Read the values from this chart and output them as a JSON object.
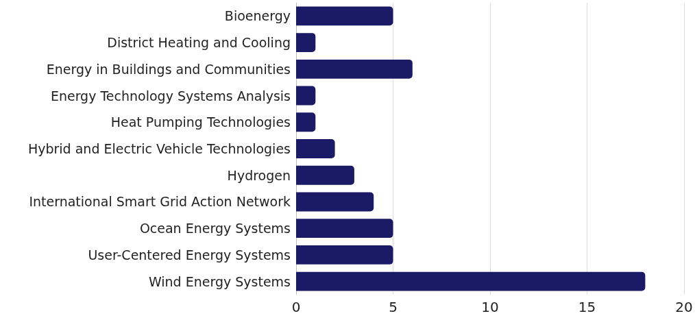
{
  "chart_data": {
    "type": "bar",
    "orientation": "horizontal",
    "categories": [
      "Bioenergy",
      "District Heating and Cooling",
      "Energy in Buildings and Communities",
      "Energy Technology Systems Analysis",
      "Heat Pumping Technologies",
      "Hybrid and Electric Vehicle Technologies",
      "Hydrogen",
      "International Smart Grid Action Network",
      "Ocean Energy Systems",
      "User-Centered Energy Systems",
      "Wind Energy Systems"
    ],
    "values": [
      5,
      1,
      6,
      1,
      1,
      2,
      3,
      4,
      5,
      5,
      18
    ],
    "color": "#1b1a67",
    "xlim": [
      0,
      20
    ],
    "xticks": [
      0,
      5,
      10,
      15,
      20
    ],
    "grid": "x"
  }
}
